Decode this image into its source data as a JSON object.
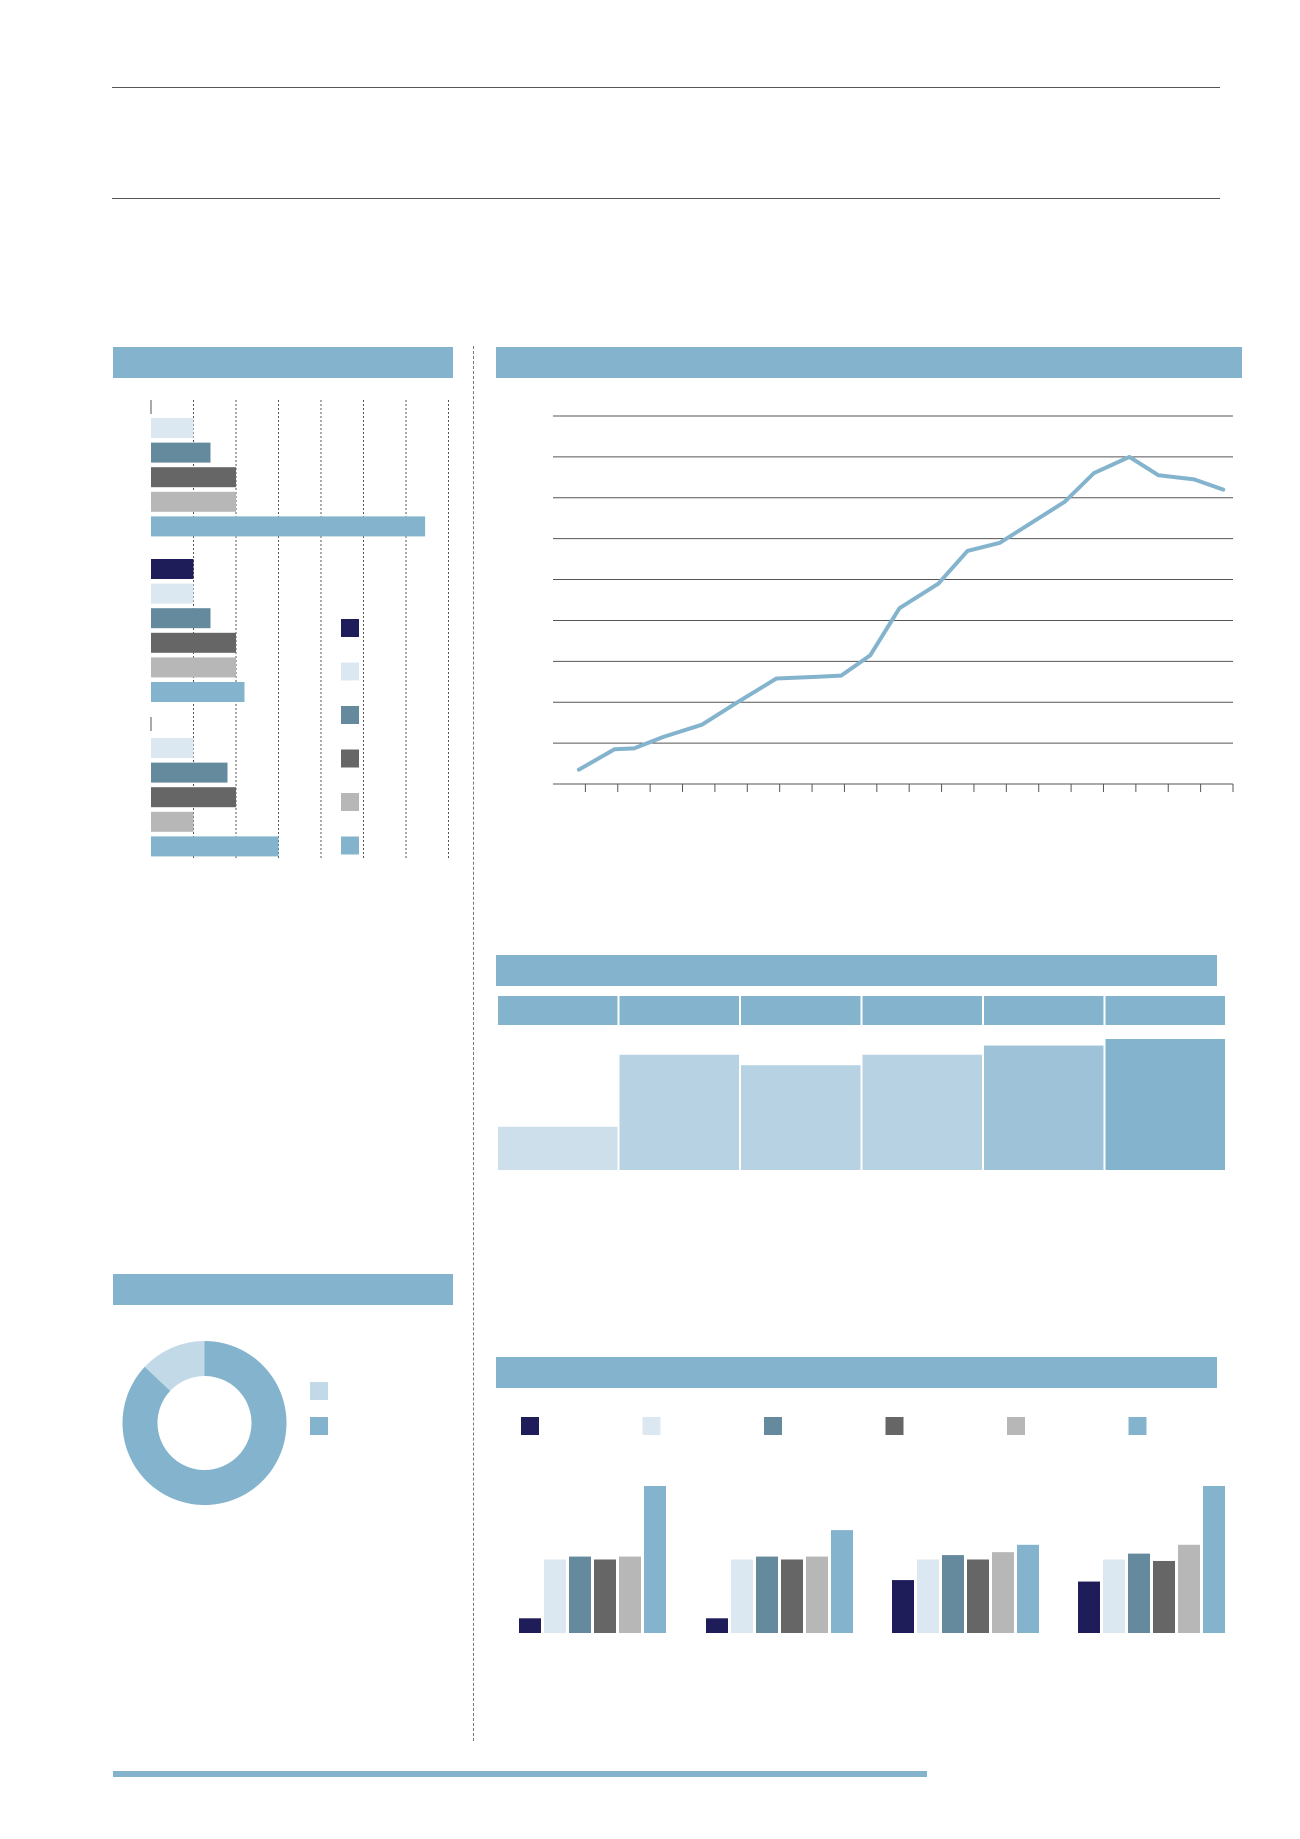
{
  "colors": {
    "accent": "#84b4cd",
    "navy": "#1e1c59",
    "pale_blue": "#dce8f1",
    "slate_blue": "#668a9d",
    "dark_gray": "#666666",
    "light_gray": "#b7b7b7",
    "sky_blue": "#84b4cd"
  },
  "chart_data": [
    {
      "type": "bar",
      "orientation": "horizontal",
      "grid": true,
      "xlim": [
        0,
        7
      ],
      "groups": [
        {
          "bars": [
            {
              "color": "pale_blue",
              "value": 1.0
            },
            {
              "color": "slate_blue",
              "value": 1.4
            },
            {
              "color": "dark_gray",
              "value": 2.0
            },
            {
              "color": "light_gray",
              "value": 2.0
            },
            {
              "color": "sky_blue",
              "value": 6.45
            }
          ]
        },
        {
          "bars": [
            {
              "color": "navy",
              "value": 1.0
            },
            {
              "color": "pale_blue",
              "value": 1.0
            },
            {
              "color": "slate_blue",
              "value": 1.4
            },
            {
              "color": "dark_gray",
              "value": 2.0
            },
            {
              "color": "light_gray",
              "value": 2.0
            },
            {
              "color": "sky_blue",
              "value": 2.2
            }
          ]
        },
        {
          "bars": [
            {
              "color": "pale_blue",
              "value": 1.0
            },
            {
              "color": "slate_blue",
              "value": 1.8
            },
            {
              "color": "dark_gray",
              "value": 2.0
            },
            {
              "color": "light_gray",
              "value": 1.0
            },
            {
              "color": "sky_blue",
              "value": 3.0
            }
          ]
        }
      ],
      "legend_swatches": [
        "navy",
        "pale_blue",
        "slate_blue",
        "dark_gray",
        "light_gray",
        "sky_blue"
      ]
    },
    {
      "type": "line",
      "grid": true,
      "ylim": [
        0,
        9
      ],
      "series": [
        {
          "values": [
            0.35,
            0.85,
            0.87,
            1.15,
            1.45,
            2.0,
            2.58,
            2.62,
            2.65,
            3.15,
            4.3,
            4.9,
            5.7,
            5.9,
            6.4,
            6.9,
            7.6,
            8.0,
            7.55,
            7.45,
            7.2
          ]
        }
      ],
      "x_positions": [
        0.8,
        1.9,
        2.5,
        3.4,
        4.6,
        5.7,
        6.9,
        8.1,
        8.9,
        9.8,
        10.7,
        11.9,
        12.8,
        13.8,
        14.8,
        15.8,
        16.7,
        17.8,
        18.7,
        19.8,
        20.7
      ],
      "xlim": [
        0,
        21
      ],
      "x_ticks": 21
    },
    {
      "type": "bar",
      "columns": 6,
      "values": [
        0.33,
        0.88,
        0.8,
        0.88,
        0.95,
        1.0
      ],
      "ylim": [
        0,
        1
      ],
      "colors": [
        "#cddfea",
        "#b7d2e2",
        "#b7d2e2",
        "#b7d2e2",
        "#9ec3d8",
        "#84b4cd"
      ]
    },
    {
      "type": "pie",
      "donut": true,
      "slices": [
        {
          "value": 13,
          "color": "#c2d9e7"
        },
        {
          "value": 87,
          "color": "#84b4cd"
        }
      ],
      "legend_swatches": [
        "#c2d9e7",
        "#84b4cd"
      ]
    },
    {
      "type": "bar",
      "ylim": [
        0,
        10
      ],
      "legend_swatches": [
        "navy",
        "pale_blue",
        "slate_blue",
        "dark_gray",
        "light_gray",
        "sky_blue"
      ],
      "groups": [
        {
          "values": [
            1.0,
            5.0,
            5.2,
            5.0,
            5.2,
            10.0
          ]
        },
        {
          "values": [
            1.0,
            5.0,
            5.2,
            5.0,
            5.2,
            7.0
          ]
        },
        {
          "values": [
            3.6,
            5.0,
            5.3,
            5.0,
            5.5,
            6.0
          ]
        },
        {
          "values": [
            3.5,
            5.0,
            5.4,
            4.9,
            6.0,
            10.0
          ]
        }
      ]
    }
  ]
}
